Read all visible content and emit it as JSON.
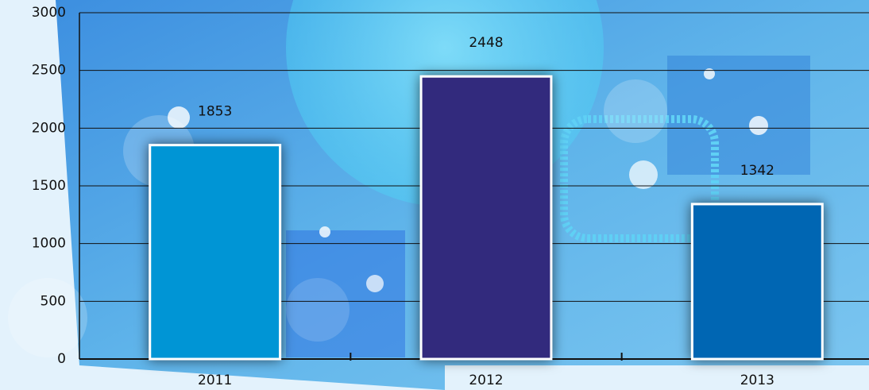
{
  "chart_data": {
    "type": "bar",
    "categories": [
      "2011",
      "2012",
      "2013"
    ],
    "values": [
      1853,
      2448,
      1342
    ],
    "colors": [
      "#0095d5",
      "#312a7d",
      "#0066b3"
    ],
    "ylim": [
      0,
      3000
    ],
    "yticks": [
      0,
      500,
      1000,
      1500,
      2000,
      2500,
      3000
    ],
    "grid": true
  }
}
